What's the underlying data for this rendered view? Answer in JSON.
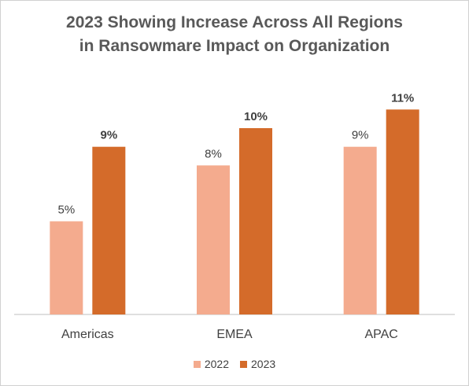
{
  "chart_data": {
    "type": "bar",
    "title_lines": [
      "2023 Showing Increase Across All Regions",
      "in Ransowmare Impact on Organization"
    ],
    "categories": [
      "Americas",
      "EMEA",
      "APAC"
    ],
    "series": [
      {
        "name": "2022",
        "values": [
          5,
          8,
          9
        ],
        "labels": [
          "5%",
          "8%",
          "9%"
        ],
        "color": "#f4ab8e",
        "label_bold": false
      },
      {
        "name": "2023",
        "values": [
          9,
          10,
          11
        ],
        "labels": [
          "9%",
          "10%",
          "11%"
        ],
        "color": "#d46b2a",
        "label_bold": true
      }
    ],
    "ylim": [
      0,
      12
    ],
    "unit": "%",
    "grid": false,
    "legend_position": "bottom"
  }
}
